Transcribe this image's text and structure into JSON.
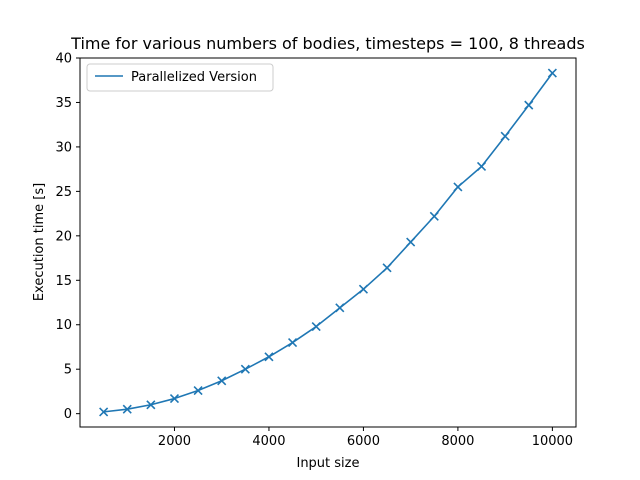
{
  "chart_data": {
    "type": "line",
    "title": "Time for various numbers of bodies, timesteps = 100, 8 threads",
    "xlabel": "Input size",
    "ylabel": "Execution time [s]",
    "xlim": [
      0,
      10500
    ],
    "ylim": [
      -1.5,
      40
    ],
    "xticks": [
      2000,
      4000,
      6000,
      8000,
      10000
    ],
    "yticks": [
      0,
      5,
      10,
      15,
      20,
      25,
      30,
      35,
      40
    ],
    "grid": false,
    "legend_position": "upper-left",
    "series": [
      {
        "name": "Parallelized Version",
        "color": "#1f77b4",
        "marker": "x",
        "x": [
          500,
          1000,
          1500,
          2000,
          2500,
          3000,
          3500,
          4000,
          4500,
          5000,
          5500,
          6000,
          6500,
          7000,
          7500,
          8000,
          8500,
          9000,
          9500,
          10000
        ],
        "y": [
          0.2,
          0.5,
          1.0,
          1.7,
          2.6,
          3.7,
          5.0,
          6.4,
          8.0,
          9.8,
          11.9,
          14.0,
          16.4,
          19.3,
          22.2,
          25.5,
          27.8,
          31.2,
          34.7,
          38.3
        ]
      }
    ]
  }
}
